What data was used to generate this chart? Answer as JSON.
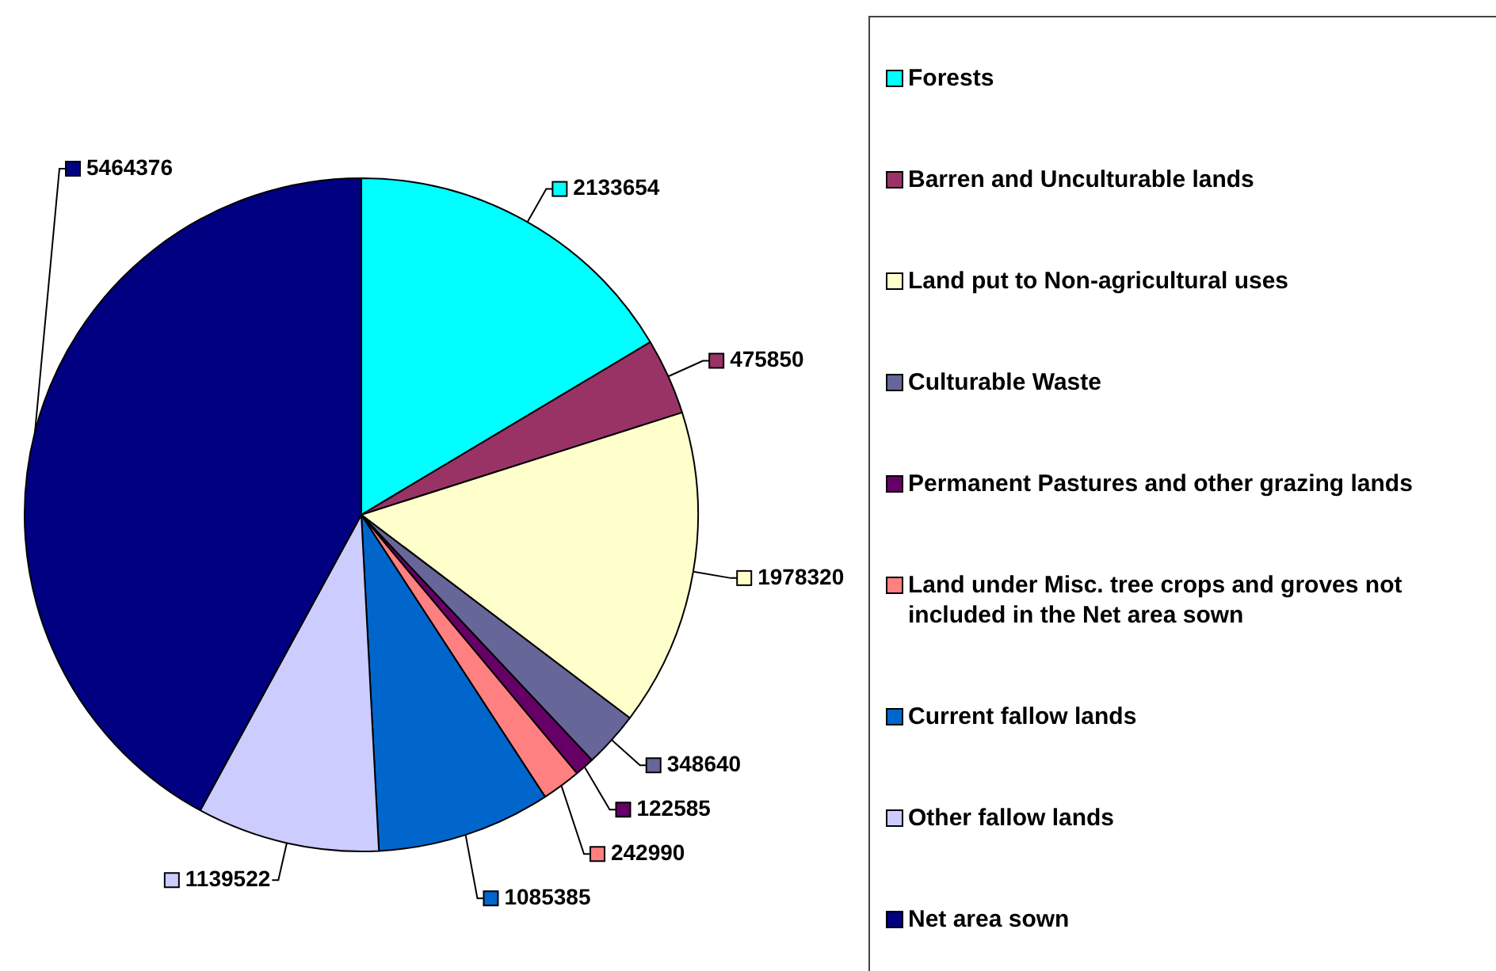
{
  "chart_data": {
    "type": "pie",
    "categories": [
      "Forests",
      "Barren and Unculturable lands",
      "Land put to Non-agricultural uses",
      "Culturable Waste",
      "Permanent Pastures and other grazing lands",
      "Land under Misc. tree crops and groves not included in the Net area sown",
      "Current fallow lands",
      "Other fallow lands",
      "Net area sown"
    ],
    "values": [
      2133654,
      475850,
      1978320,
      348640,
      122585,
      242990,
      1085385,
      1139522,
      5464376
    ],
    "colors": [
      "#00ffff",
      "#993366",
      "#ffffcc",
      "#666699",
      "#660066",
      "#ff8080",
      "#0066cc",
      "#ccccff",
      "#000080"
    ],
    "data_labels": true,
    "legend": "right"
  }
}
